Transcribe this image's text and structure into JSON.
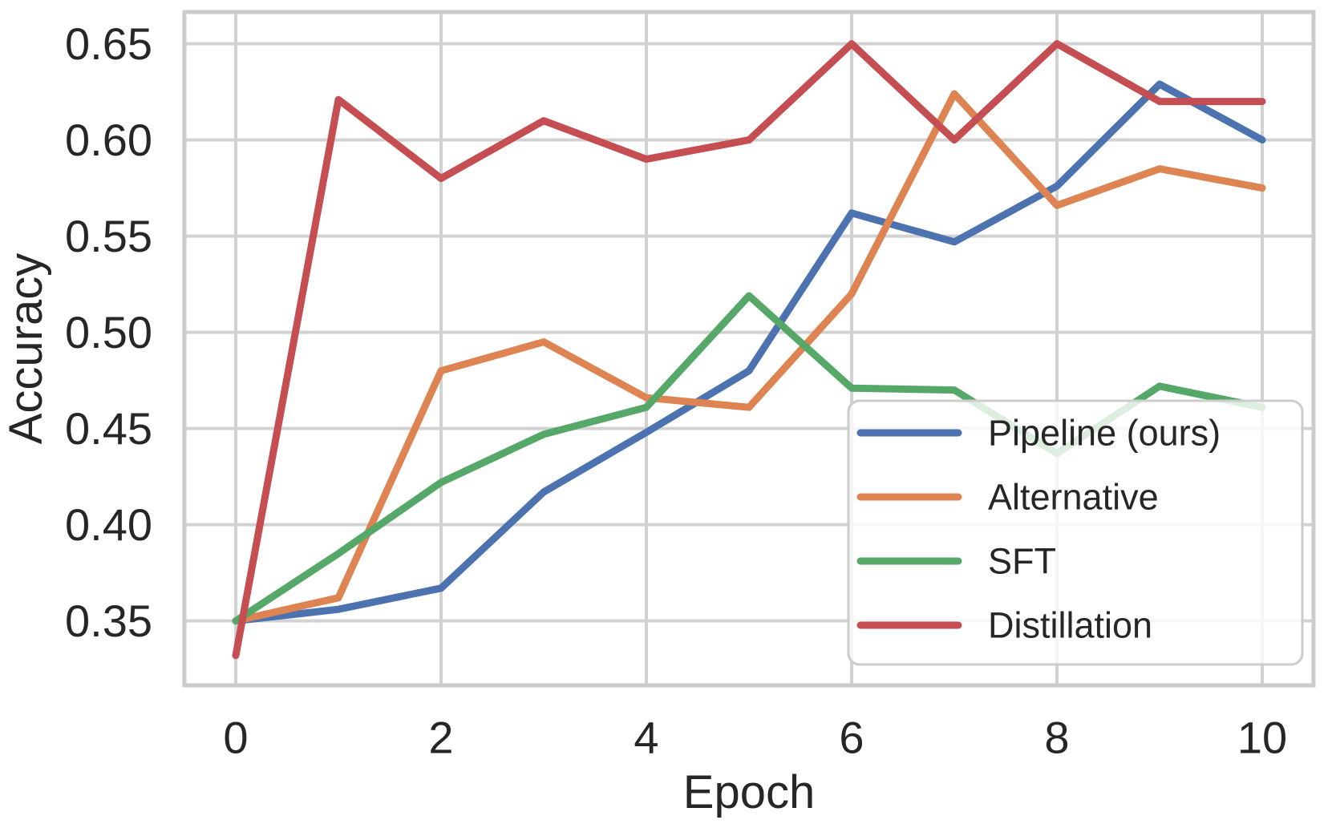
{
  "chart_data": {
    "type": "line",
    "title": "",
    "xlabel": "Epoch",
    "ylabel": "Accuracy",
    "x": [
      0,
      1,
      2,
      3,
      4,
      5,
      6,
      7,
      8,
      9,
      10
    ],
    "series": [
      {
        "name": "Pipeline (ours)",
        "color": "#4C72B0",
        "values": [
          0.35,
          0.356,
          0.367,
          0.417,
          0.448,
          0.48,
          0.562,
          0.547,
          0.576,
          0.629,
          0.6
        ]
      },
      {
        "name": "Alternative",
        "color": "#DD8452",
        "values": [
          0.35,
          0.362,
          0.48,
          0.495,
          0.466,
          0.461,
          0.52,
          0.624,
          0.566,
          0.585,
          0.575
        ]
      },
      {
        "name": "SFT",
        "color": "#55A868",
        "values": [
          0.35,
          0.385,
          0.422,
          0.447,
          0.461,
          0.519,
          0.471,
          0.47,
          0.437,
          0.472,
          0.461
        ]
      },
      {
        "name": "Distillation",
        "color": "#C44E52",
        "values": [
          0.332,
          0.621,
          0.58,
          0.61,
          0.59,
          0.6,
          0.65,
          0.6,
          0.65,
          0.62,
          0.62
        ]
      }
    ],
    "xticks": [
      0,
      2,
      4,
      6,
      8,
      10
    ],
    "yticks": [
      0.35,
      0.4,
      0.45,
      0.5,
      0.55,
      0.6,
      0.65
    ],
    "xlim": [
      -0.5,
      10.5
    ],
    "ylim": [
      0.3165,
      0.6665
    ],
    "grid": true,
    "legend_position": "lower right"
  },
  "style": {
    "background": "#ffffff",
    "grid_color": "#d2d2d2",
    "spine_color": "#cbcbcb",
    "text_color": "#262626",
    "legend_border_color": "#cccccc",
    "legend_bg_color": "#ffffff",
    "legend_bg_opacity": 0.8
  }
}
